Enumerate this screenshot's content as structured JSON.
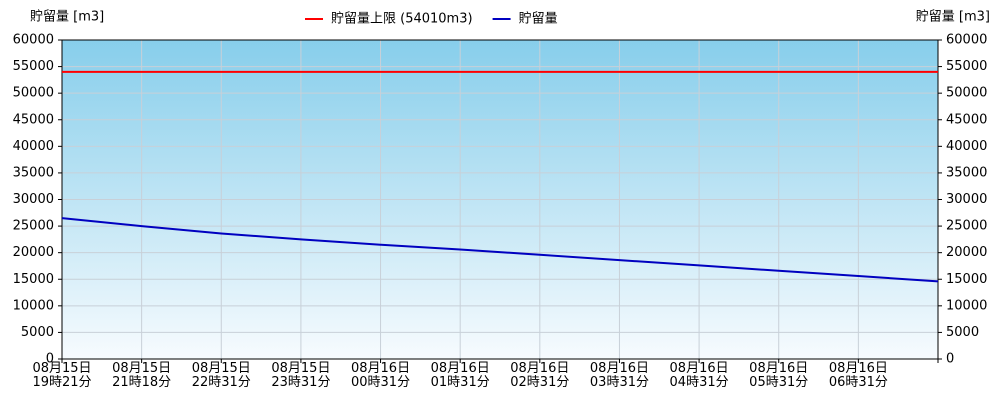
{
  "chart_data": {
    "type": "line",
    "y_label": "貯留量 [m3]",
    "y2_label": "貯留量 [m3]",
    "categories": [
      "08月15日\n19時21分",
      "08月15日\n21時18分",
      "08月15日\n22時31分",
      "08月15日\n23時31分",
      "08月16日\n00時31分",
      "08月16日\n01時31分",
      "08月16日\n02時31分",
      "08月16日\n03時31分",
      "08月16日\n04時31分",
      "08月16日\n05時31分",
      "08月16日\n06時31分",
      null
    ],
    "series": [
      {
        "name": "貯留量上限 (54010m3)",
        "color": "#ff0000",
        "values": [
          54010,
          54010,
          54010,
          54010,
          54010,
          54010,
          54010,
          54010,
          54010,
          54010,
          54010,
          54010
        ]
      },
      {
        "name": "貯留量",
        "color": "#0000c0",
        "values": [
          26500,
          25000,
          23600,
          22500,
          21500,
          20600,
          19600,
          18600,
          17600,
          16600,
          15600,
          14600
        ]
      }
    ],
    "ylim": [
      0,
      60000
    ],
    "yticks": [
      0,
      5000,
      10000,
      15000,
      20000,
      25000,
      30000,
      35000,
      40000,
      45000,
      50000,
      55000,
      60000
    ],
    "y2lim": [
      0,
      60000
    ],
    "y2ticks": [
      0,
      5000,
      10000,
      15000,
      20000,
      25000,
      30000,
      35000,
      40000,
      45000,
      50000,
      55000,
      60000
    ],
    "grid": true,
    "legend": "top"
  }
}
